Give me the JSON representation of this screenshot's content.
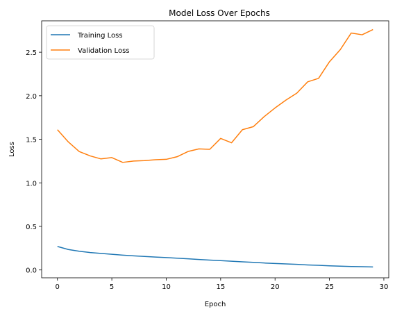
{
  "chart_data": {
    "type": "line",
    "title": "Model Loss Over Epochs",
    "xlabel": "Epoch",
    "ylabel": "Loss",
    "xlim": [
      -1.45,
      30.45
    ],
    "ylim": [
      -0.09,
      2.86
    ],
    "xticks": [
      0,
      5,
      10,
      15,
      20,
      25,
      30
    ],
    "yticks": [
      0.0,
      0.5,
      1.0,
      1.5,
      2.0,
      2.5
    ],
    "ytick_labels": [
      "0.0",
      "0.5",
      "1.0",
      "1.5",
      "2.0",
      "2.5"
    ],
    "grid": false,
    "legend_position": "upper left",
    "x": [
      0,
      1,
      2,
      3,
      4,
      5,
      6,
      7,
      8,
      9,
      10,
      11,
      12,
      13,
      14,
      15,
      16,
      17,
      18,
      19,
      20,
      21,
      22,
      23,
      24,
      25,
      26,
      27,
      28,
      29
    ],
    "series": [
      {
        "name": "Training Loss",
        "color": "#1f77b4",
        "values": [
          0.27,
          0.235,
          0.215,
          0.2,
          0.19,
          0.18,
          0.17,
          0.162,
          0.155,
          0.148,
          0.142,
          0.135,
          0.128,
          0.12,
          0.113,
          0.107,
          0.1,
          0.093,
          0.087,
          0.08,
          0.074,
          0.069,
          0.064,
          0.058,
          0.053,
          0.048,
          0.044,
          0.04,
          0.038,
          0.035
        ]
      },
      {
        "name": "Validation Loss",
        "color": "#ff7f0e",
        "values": [
          1.61,
          1.47,
          1.36,
          1.31,
          1.275,
          1.29,
          1.235,
          1.25,
          1.255,
          1.265,
          1.27,
          1.3,
          1.36,
          1.39,
          1.385,
          1.51,
          1.46,
          1.61,
          1.645,
          1.76,
          1.86,
          1.95,
          2.03,
          2.16,
          2.2,
          2.39,
          2.53,
          2.72,
          2.7,
          2.76
        ]
      }
    ]
  }
}
